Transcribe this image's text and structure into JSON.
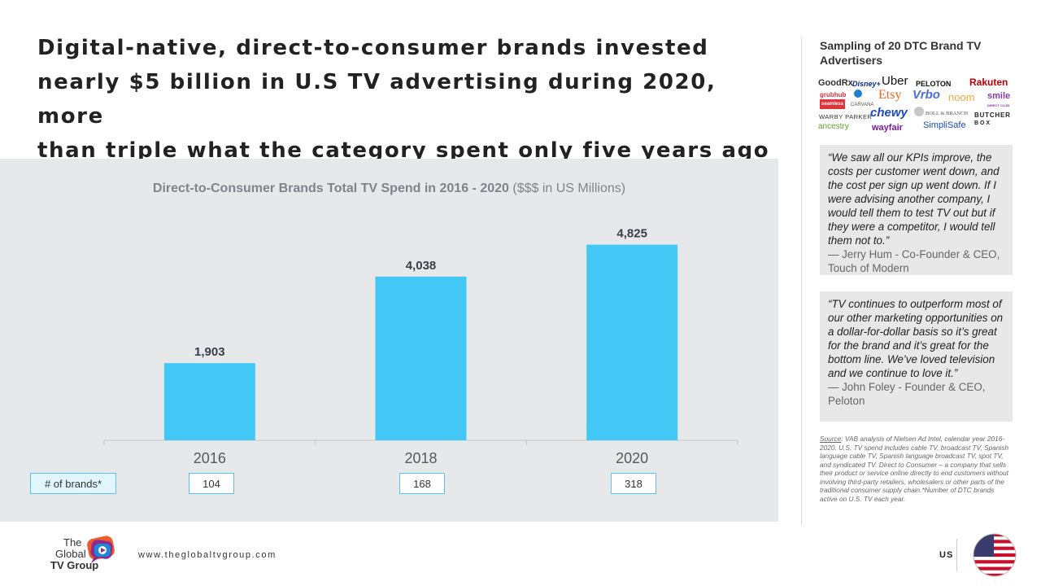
{
  "headline": {
    "line1": "Digital-native, direct-to-consumer brands invested",
    "line2": "nearly $5 billion in U.S TV advertising during 2020, more",
    "line3": "than triple what the category spent only five years ago"
  },
  "chart_data": {
    "type": "bar",
    "title": "Direct-to-Consumer Brands Total TV Spend in 2016 - 2020",
    "title_unit": "($$$ in US Millions)",
    "categories": [
      "2016",
      "2018",
      "2020"
    ],
    "values": [
      1903,
      4038,
      4825
    ],
    "value_labels": [
      "1,903",
      "4,038",
      "4,825"
    ],
    "ylim": [
      0,
      5500
    ],
    "bar_color": "#43c8f5",
    "xlabel": "",
    "ylabel": ""
  },
  "brands": {
    "label": "# of brands*",
    "values": [
      "104",
      "168",
      "318"
    ]
  },
  "sidebar": {
    "title": "Sampling of 20 DTC Brand TV Advertisers",
    "logos": {
      "goodrx": "GoodRx",
      "disney": "Disney+",
      "uber": "Uber",
      "peloton": "PELOTON",
      "rakuten": "Rakuten",
      "grubhub": "grubhub",
      "seamless": "seamless",
      "carvana": "CARVANA",
      "etsy": "Etsy",
      "vrbo": "Vrbo",
      "noom": "noom",
      "smile": "smile",
      "smile_sub": "DIRECT CLUB",
      "warby": "WARBY PARKER",
      "chewy": "chewy",
      "boll": "BOLL & BRANCH",
      "butcher1": "BUTCHER",
      "butcher2": "B O X",
      "ancestry": "ancestry",
      "wayfair": "wayfair",
      "simplisafe": "SimpliSafe"
    },
    "quotes": [
      {
        "text": "“We saw all our KPIs improve, the costs per customer went down, and the cost per sign up went down. If I were advising another company, I would tell them to test TV out but if they were a competitor, I would tell them not to.”",
        "attribution": "— Jerry Hum - Co-Founder & CEO, Touch of Modern"
      },
      {
        "text": "“TV continues to outperform most of our other marketing opportunities on a dollar-for-dollar basis so it’s great for the brand and it’s great for the bottom line. We’ve loved television and we continue to love it.”",
        "attribution": "— John Foley - Founder & CEO, Peloton"
      }
    ],
    "source_label": "Source",
    "source_text": ": VAB analysis of Nielsen Ad Intel, calendar year 2016-2020. U.S. TV spend includes cable TV, broadcast TV, Spanish language cable TV, Spanish language broadcast TV, spot TV, and syndicated TV. Direct to Consumer – a company that sells their product or service online directly to end customers without involving third-party retailers, wholesalers or other parts of the traditional consumer supply chain.*Number of DTC brands active on U.S. TV each year."
  },
  "footer": {
    "brand_line1": "The",
    "brand_line2": "Global",
    "brand_line3": "TV Group",
    "url": "www.theglobaltvgroup.com",
    "country": "US"
  }
}
